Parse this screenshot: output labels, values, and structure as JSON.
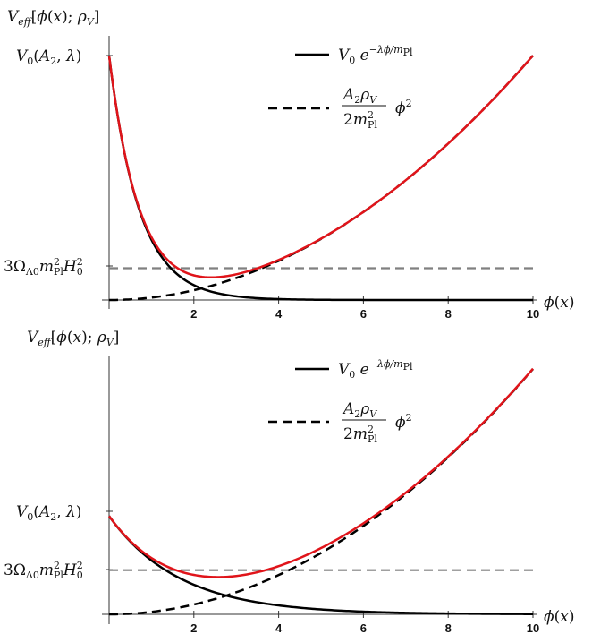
{
  "chart_data": [
    {
      "type": "line",
      "ylabel": "V_eff[ϕ(x); ρ_V]",
      "xlabel": "ϕ(x)",
      "xlim": [
        0,
        10
      ],
      "xticks": [
        2,
        4,
        6,
        8,
        10
      ],
      "annotations": [
        "V₀(A₂, λ)",
        "3Ω_Λ0 m²_Pl H₀²"
      ],
      "legend": {
        "placement": "top-right",
        "entries": [
          {
            "style": "solid",
            "label": "V₀ e^(−λϕ/m_Pl)"
          },
          {
            "style": "dashed",
            "label": "A₂ρ_V / (2m²_Pl) ϕ²"
          }
        ]
      },
      "series": [
        {
          "style": "solid",
          "color": "#000000",
          "kind": "exp",
          "V0": 1.0,
          "lambda": 1.4
        },
        {
          "style": "dashed",
          "color": "#000000",
          "kind": "quad",
          "coef": 0.01
        },
        {
          "color": "#e0141a",
          "kind": "sum"
        }
      ],
      "reference_line": {
        "y": 0.13,
        "color": "#808080",
        "style": "dashed"
      },
      "ylim": [
        0,
        1.0
      ]
    },
    {
      "type": "line",
      "ylabel": "V_eff[ϕ(x); ρ_V]",
      "xlabel": "ϕ(x)",
      "xlim": [
        0,
        10
      ],
      "xticks": [
        2,
        4,
        6,
        8,
        10
      ],
      "annotations": [
        "V₀(A₂, λ)",
        "3Ω_Λ0 m²_Pl H₀²"
      ],
      "legend": {
        "placement": "top-right",
        "entries": [
          {
            "style": "solid",
            "label": "V₀ e^(−λϕ/m_Pl)"
          },
          {
            "style": "dashed",
            "label": "A₂ρ_V / (2m²_Pl) ϕ²"
          }
        ]
      },
      "series": [
        {
          "style": "solid",
          "color": "#000000",
          "kind": "exp",
          "V0": 0.4,
          "lambda": 0.6
        },
        {
          "style": "dashed",
          "color": "#000000",
          "kind": "quad",
          "coef": 0.01
        },
        {
          "color": "#e0141a",
          "kind": "sum"
        }
      ],
      "reference_line": {
        "y": 0.18,
        "color": "#808080",
        "style": "dashed"
      },
      "ylim": [
        0,
        1.0
      ]
    }
  ]
}
